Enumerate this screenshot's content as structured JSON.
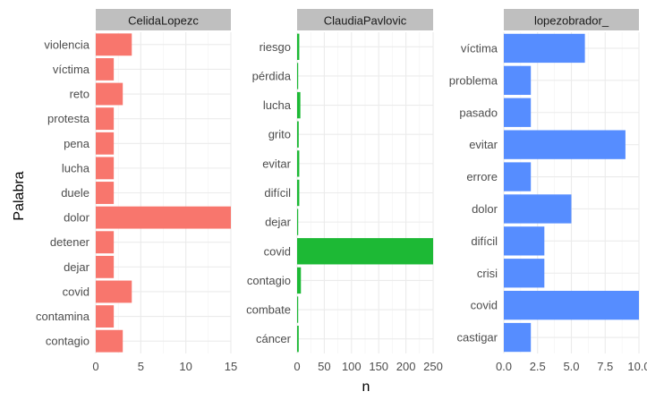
{
  "chart_data": {
    "type": "bar",
    "orientation": "horizontal",
    "facet": true,
    "xlabel": "n",
    "ylabel": "Palabra",
    "grid": true,
    "panels": [
      {
        "title": "CelidaLopezc",
        "color": "#F8766D",
        "categories": [
          "violencia",
          "víctima",
          "reto",
          "protesta",
          "pena",
          "lucha",
          "duele",
          "dolor",
          "detener",
          "dejar",
          "covid",
          "contamina",
          "contagio"
        ],
        "values": [
          4,
          2,
          3,
          2,
          2,
          2,
          2,
          15,
          2,
          2,
          4,
          2,
          3
        ],
        "xlim": [
          0,
          15
        ],
        "xticks": [
          0,
          5,
          10,
          15
        ],
        "xtick_labels": [
          "0",
          "5",
          "10",
          "15"
        ]
      },
      {
        "title": "ClaudiaPavlovic",
        "color": "#1DB935",
        "categories": [
          "riesgo",
          "pérdida",
          "lucha",
          "grito",
          "evitar",
          "difícil",
          "dejar",
          "covid",
          "contagio",
          "combate",
          "cáncer"
        ],
        "values": [
          4,
          2,
          6,
          3,
          4,
          4,
          2,
          250,
          7,
          2,
          3
        ],
        "xlim": [
          0,
          250
        ],
        "xticks": [
          0,
          50,
          100,
          150,
          200,
          250
        ],
        "xtick_labels": [
          "0",
          "50",
          "100",
          "150",
          "200",
          "250"
        ]
      },
      {
        "title": "lopezobrador_",
        "color": "#568DFF",
        "categories": [
          "víctima",
          "problema",
          "pasado",
          "evitar",
          "errore",
          "dolor",
          "difícil",
          "crisi",
          "covid",
          "castigar"
        ],
        "values": [
          6,
          2,
          2,
          9,
          2,
          5,
          3,
          3,
          10,
          2
        ],
        "xlim": [
          0,
          10
        ],
        "xticks": [
          0,
          2.5,
          5,
          7.5,
          10
        ],
        "xtick_labels": [
          "0.0",
          "2.5",
          "5.0",
          "7.5",
          "10.0"
        ]
      }
    ]
  }
}
